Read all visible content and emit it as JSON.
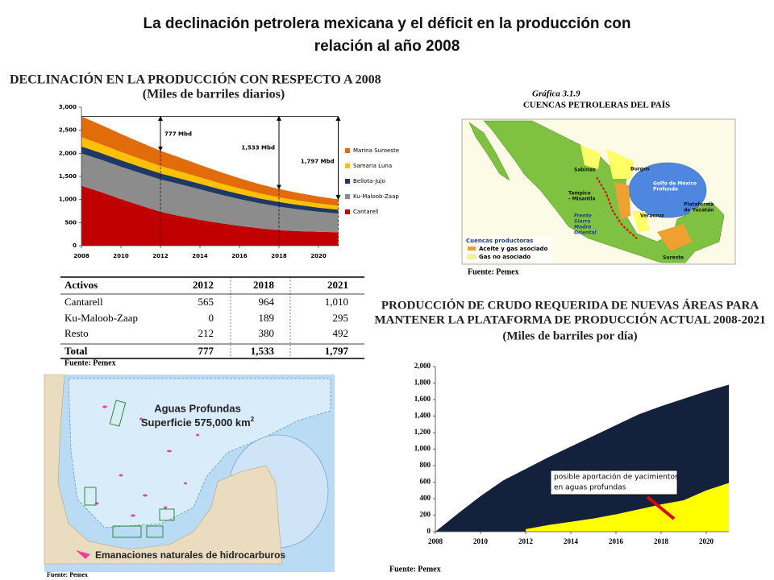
{
  "title_lines": [
    "La declinación petrolera mexicana y el déficit en la producción con",
    "relación al año 2008"
  ],
  "chart_data": [
    {
      "type": "area",
      "stacked": true,
      "title": "DECLINACIÓN EN LA PRODUCCIÓN CON RESPECTO A 2008",
      "subtitle": "(Miles de barriles diarios)",
      "x": [
        2008,
        2009,
        2010,
        2011,
        2012,
        2013,
        2014,
        2015,
        2016,
        2017,
        2018,
        2019,
        2020,
        2021
      ],
      "xlim": [
        2008,
        2021
      ],
      "xticks": [
        2008,
        2010,
        2012,
        2014,
        2016,
        2018,
        2020
      ],
      "ylim": [
        0,
        3000
      ],
      "yticks": [
        0,
        500,
        {
          "value": 1000,
          "label": "1,000"
        },
        {
          "value": 1500,
          "label": "1,500"
        },
        {
          "value": 2000,
          "label": "2,000"
        },
        {
          "value": 2500,
          "label": "2,500"
        },
        {
          "value": 3000,
          "label": "3,000"
        }
      ],
      "grid": false,
      "legend": "right",
      "series": [
        {
          "name": "Cantarell",
          "color": "#c00000",
          "values": [
            1300,
            1160,
            1010,
            870,
            735,
            640,
            560,
            490,
            430,
            380,
            336,
            315,
            300,
            290
          ]
        },
        {
          "name": "Ku-Maloob-Zaap",
          "color": "#8c8c8c",
          "values": [
            700,
            700,
            700,
            700,
            700,
            690,
            660,
            620,
            580,
            540,
            511,
            470,
            435,
            405
          ]
        },
        {
          "name": "Bellota-Jujo",
          "color": "#1f3864",
          "values": [
            150,
            145,
            140,
            135,
            130,
            125,
            120,
            115,
            110,
            105,
            100,
            95,
            90,
            85
          ]
        },
        {
          "name": "Samaria Luna",
          "color": "#ffc000",
          "values": [
            200,
            190,
            180,
            170,
            160,
            150,
            140,
            130,
            120,
            110,
            100,
            95,
            90,
            85
          ]
        },
        {
          "name": "Marina Suroeste",
          "color": "#e36c0a",
          "values": [
            450,
            420,
            390,
            360,
            330,
            300,
            270,
            245,
            220,
            200,
            180,
            165,
            150,
            138
          ]
        }
      ],
      "annotations": [
        {
          "text": "777 Mbd",
          "x": 2012
        },
        {
          "text": "1,533 Mbd",
          "x": 2018
        },
        {
          "text": "1,797 Mbd",
          "x": 2021
        }
      ]
    },
    {
      "type": "area",
      "stacked": false,
      "title_lines": [
        "PRODUCCIÓN DE CRUDO REQUERIDA DE NUEVAS ÁREAS PARA",
        "MANTENER LA PLATAFORMA DE PRODUCCIÓN ACTUAL 2008-2021"
      ],
      "subtitle": "(Miles de barriles por día)",
      "x": [
        2008,
        2009,
        2010,
        2011,
        2012,
        2013,
        2014,
        2015,
        2016,
        2017,
        2018,
        2019,
        2020,
        2021
      ],
      "xlim": [
        2008,
        2021
      ],
      "xticks": [
        2008,
        2010,
        2012,
        2014,
        2016,
        2018,
        2020
      ],
      "ylim": [
        0,
        2000
      ],
      "yticks": [
        0,
        200,
        400,
        600,
        800,
        {
          "value": 1000,
          "label": "1,000"
        },
        {
          "value": 1200,
          "label": "1,200"
        },
        {
          "value": 1400,
          "label": "1,400"
        },
        {
          "value": 1600,
          "label": "1,600"
        },
        {
          "value": 1800,
          "label": "1,800"
        },
        {
          "value": 2000,
          "label": "2,000"
        }
      ],
      "grid": false,
      "series": [
        {
          "color": "#14213d",
          "values": [
            0,
            220,
            430,
            620,
            760,
            900,
            1030,
            1160,
            1290,
            1420,
            1520,
            1610,
            1700,
            1780
          ]
        },
        {
          "color": "#ffff00",
          "values": [
            null,
            null,
            null,
            null,
            30,
            80,
            120,
            160,
            210,
            270,
            330,
            380,
            500,
            590
          ]
        }
      ],
      "annotation_lines": [
        "posible aportación de yacimientos",
        "en aguas profundas"
      ],
      "source": "Fuente: Pemex"
    }
  ],
  "table": {
    "headers": [
      "Activos",
      "2012",
      "2018",
      "2021"
    ],
    "rows": [
      [
        "Cantarell",
        "565",
        "964",
        "1,010"
      ],
      [
        "Ku-Maloob-Zaap",
        "0",
        "189",
        "295"
      ],
      [
        "Resto",
        "212",
        "380",
        "492"
      ],
      [
        "Total",
        "777",
        "1,533",
        "1,797"
      ]
    ],
    "source": "Fuente: Pemex"
  },
  "map_basins": {
    "caption": "Gráfica 3.1.9",
    "title": "CUENCAS PETROLERAS DEL PAÍS",
    "labels": [
      [
        "Sabinas"
      ],
      [
        "Burgos"
      ],
      [
        "Golfo de México",
        "Profundo"
      ],
      [
        "Tampico",
        "- Misantla"
      ],
      [
        "Frente",
        "Sierra",
        "Madre",
        "Oriental"
      ],
      [
        "Veracruz"
      ],
      [
        "Plataforma",
        "de Yucatán"
      ],
      [
        "Sureste"
      ]
    ],
    "legend_title": "Cuencas productoras",
    "legend": [
      "Aceite y gas asociado",
      "Gas no asociado"
    ],
    "source": "Fuente: Pemex"
  },
  "map_deepwater": {
    "title": "Aguas Profundas",
    "area_label": "Superficie 575,000 km",
    "area_superscript": "2",
    "legend": "Emanaciones naturales de hidrocarburos",
    "source": "Fuente: Pemex"
  }
}
